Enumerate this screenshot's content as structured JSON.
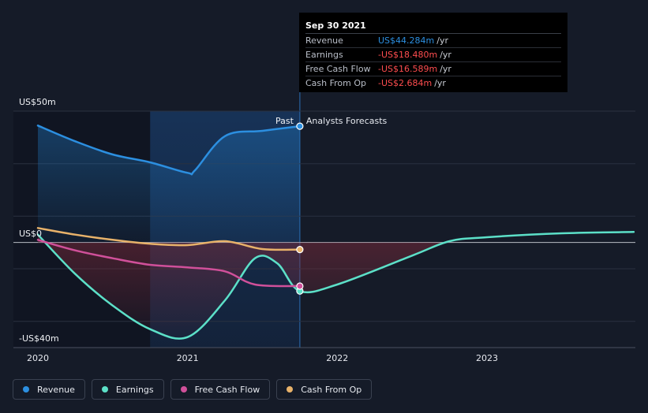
{
  "chart_data": {
    "type": "line",
    "y_top_label": "US$50m",
    "y_zero_label": "US$0",
    "y_bottom_label": "-US$40m",
    "ylim": [
      -40,
      50
    ],
    "xlim": [
      2019.98,
      2023.98
    ],
    "x_ticks": [
      {
        "value": 2020,
        "label": "2020"
      },
      {
        "value": 2021,
        "label": "2021"
      },
      {
        "value": 2022,
        "label": "2022"
      },
      {
        "value": 2023,
        "label": "2023"
      }
    ],
    "past_label": "Past",
    "forecast_label": "Analysts Forecasts",
    "past_end": 2021.75,
    "highlight_start": 2020.75,
    "series": [
      {
        "name": "Revenue",
        "color": "#2c8fe0",
        "points": [
          [
            2020.0,
            44.5
          ],
          [
            2020.25,
            38.5
          ],
          [
            2020.5,
            33.5
          ],
          [
            2020.75,
            30.5
          ],
          [
            2021.0,
            26.5
          ],
          [
            2021.05,
            27.5
          ],
          [
            2021.25,
            40.5
          ],
          [
            2021.5,
            42.5
          ],
          [
            2021.75,
            44.284
          ]
        ]
      },
      {
        "name": "Earnings",
        "color": "#5ce0c8",
        "points": [
          [
            2020.0,
            3
          ],
          [
            2020.25,
            -12
          ],
          [
            2020.5,
            -24
          ],
          [
            2020.75,
            -33
          ],
          [
            2021.0,
            -36
          ],
          [
            2021.25,
            -22
          ],
          [
            2021.45,
            -6
          ],
          [
            2021.6,
            -8
          ],
          [
            2021.75,
            -18.48
          ],
          [
            2022.0,
            -16
          ],
          [
            2022.5,
            -5
          ],
          [
            2022.75,
            0.5
          ],
          [
            2023.0,
            2
          ],
          [
            2023.5,
            3.5
          ],
          [
            2023.98,
            4
          ]
        ]
      },
      {
        "name": "Free Cash Flow",
        "color": "#d0509a",
        "points": [
          [
            2020.0,
            1
          ],
          [
            2020.25,
            -3
          ],
          [
            2020.5,
            -6
          ],
          [
            2020.75,
            -8.5
          ],
          [
            2021.0,
            -9.5
          ],
          [
            2021.25,
            -11
          ],
          [
            2021.45,
            -16
          ],
          [
            2021.75,
            -16.589
          ]
        ]
      },
      {
        "name": "Cash From Op",
        "color": "#e8b26a",
        "points": [
          [
            2020.0,
            5.5
          ],
          [
            2020.25,
            3
          ],
          [
            2020.5,
            1
          ],
          [
            2020.75,
            -0.5
          ],
          [
            2021.0,
            -1
          ],
          [
            2021.25,
            0.5
          ],
          [
            2021.5,
            -2.5
          ],
          [
            2021.75,
            -2.684
          ]
        ]
      }
    ]
  },
  "tooltip": {
    "date": "Sep 30 2021",
    "rows": [
      {
        "label": "Revenue",
        "value": "US$44.284m",
        "unit": "/yr",
        "color": "#2c8fe0"
      },
      {
        "label": "Earnings",
        "value": "-US$18.480m",
        "unit": "/yr",
        "color": "#ff4d4f"
      },
      {
        "label": "Free Cash Flow",
        "value": "-US$16.589m",
        "unit": "/yr",
        "color": "#ff4d4f"
      },
      {
        "label": "Cash From Op",
        "value": "-US$2.684m",
        "unit": "/yr",
        "color": "#ff4d4f"
      }
    ]
  },
  "legend": [
    {
      "label": "Revenue",
      "color": "#2c8fe0"
    },
    {
      "label": "Earnings",
      "color": "#5ce0c8"
    },
    {
      "label": "Free Cash Flow",
      "color": "#d0509a"
    },
    {
      "label": "Cash From Op",
      "color": "#e8b26a"
    }
  ]
}
